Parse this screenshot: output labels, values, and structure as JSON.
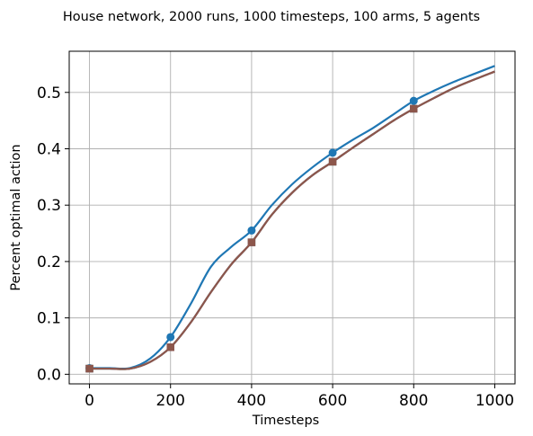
{
  "chart_data": {
    "type": "line",
    "title": "House network, 2000 runs, 1000 timesteps, 100 arms, 5 agents",
    "xlabel": "Timesteps",
    "ylabel": "Percent optimal action",
    "xlim": [
      -50,
      1050
    ],
    "ylim": [
      -0.017,
      0.573
    ],
    "xticks": [
      0,
      200,
      400,
      600,
      800,
      1000
    ],
    "xtick_labels": [
      "0",
      "200",
      "400",
      "600",
      "800",
      "1000"
    ],
    "yticks": [
      0.0,
      0.1,
      0.2,
      0.3,
      0.4,
      0.5
    ],
    "ytick_labels": [
      "0.0",
      "0.1",
      "0.2",
      "0.3",
      "0.4",
      "0.5"
    ],
    "grid": true,
    "x": [
      0,
      50,
      100,
      150,
      200,
      250,
      300,
      350,
      400,
      450,
      500,
      550,
      600,
      650,
      700,
      750,
      800,
      850,
      900,
      950,
      1000
    ],
    "series": [
      {
        "color": "#1f77b4",
        "marker": "circle",
        "markers_at": [
          0,
          200,
          400,
          600,
          800
        ],
        "values": [
          0.011,
          0.011,
          0.011,
          0.028,
          0.066,
          0.125,
          0.191,
          0.226,
          0.255,
          0.3,
          0.337,
          0.367,
          0.393,
          0.416,
          0.437,
          0.461,
          0.485,
          0.503,
          0.519,
          0.533,
          0.547
        ]
      },
      {
        "color": "#2ca02c",
        "marker": "square",
        "markers_at": [
          0,
          200,
          400,
          600,
          800
        ],
        "values": [
          0.01,
          0.01,
          0.01,
          0.022,
          0.048,
          0.092,
          0.146,
          0.195,
          0.234,
          0.283,
          0.322,
          0.353,
          0.377,
          0.402,
          0.426,
          0.45,
          0.471,
          0.49,
          0.508,
          0.523,
          0.537
        ]
      },
      {
        "color": "#9467bd",
        "marker": "square",
        "markers_at": [
          0,
          200,
          400,
          600,
          800
        ],
        "values": [
          0.01,
          0.01,
          0.01,
          0.022,
          0.048,
          0.092,
          0.146,
          0.195,
          0.234,
          0.283,
          0.322,
          0.353,
          0.377,
          0.402,
          0.426,
          0.45,
          0.471,
          0.49,
          0.508,
          0.523,
          0.537
        ]
      },
      {
        "color": "#8c564b",
        "marker": "square",
        "markers_at": [
          0,
          200,
          400,
          600,
          800
        ],
        "values": [
          0.01,
          0.01,
          0.01,
          0.022,
          0.048,
          0.092,
          0.146,
          0.195,
          0.234,
          0.283,
          0.322,
          0.353,
          0.377,
          0.402,
          0.426,
          0.45,
          0.471,
          0.49,
          0.508,
          0.523,
          0.537
        ]
      }
    ]
  }
}
